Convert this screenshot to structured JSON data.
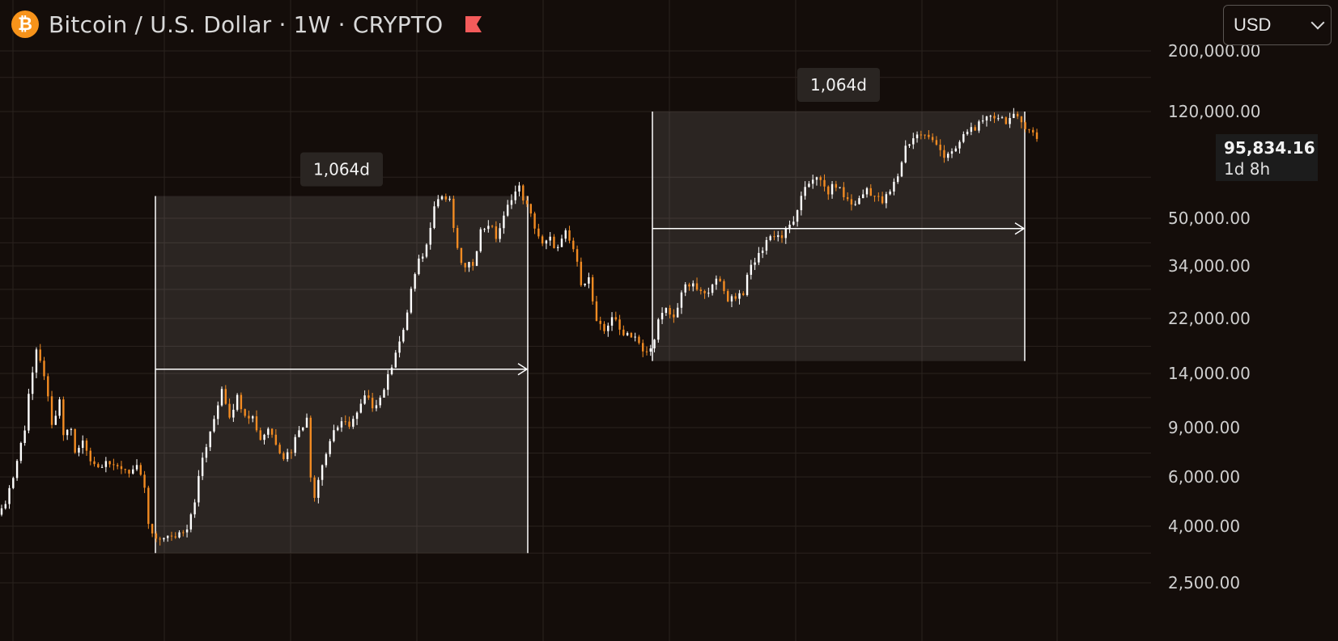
{
  "header": {
    "title": "Bitcoin / U.S. Dollar · 1W · CRYPTO",
    "icon": "bitcoin-icon",
    "flag_icon": "flag-icon",
    "currency": "USD"
  },
  "price_label": {
    "value": "95,834.16",
    "countdown": "1d 8h"
  },
  "colors": {
    "background": "#140d0a",
    "up": "#ffffff",
    "down": "#f28b22",
    "range_fill": "rgba(255,255,255,0.10)",
    "grid": "#2a221e",
    "axis_text": "#cfcfcf"
  },
  "chart_data": {
    "type": "candlestick",
    "title": "Bitcoin / U.S. Dollar · 1W · CRYPTO",
    "y_scale": "log",
    "y_ticks": [
      2500,
      4000,
      6000,
      9000,
      14000,
      22000,
      34000,
      50000,
      120000,
      200000
    ],
    "y_tick_labels": [
      "2,500.00",
      "4,000.00",
      "6,000.00",
      "9,000.00",
      "14,000.00",
      "22,000.00",
      "34,000.00",
      "50,000.00",
      "120,000.00",
      "200,000.00"
    ],
    "last_price": 95834.16,
    "grid": true,
    "series": [
      {
        "points": [
          [
            0,
            4500
          ],
          [
            3,
            6000
          ],
          [
            6,
            9000
          ],
          [
            7,
            12000
          ],
          [
            9,
            16500
          ],
          [
            11,
            14000
          ],
          [
            13,
            9000
          ],
          [
            15,
            11000
          ],
          [
            16,
            8500
          ],
          [
            18,
            9000
          ],
          [
            19,
            7200
          ],
          [
            21,
            8000
          ],
          [
            23,
            7000
          ],
          [
            25,
            6500
          ],
          [
            27,
            7000
          ],
          [
            29,
            6400
          ],
          [
            31,
            6500
          ],
          [
            33,
            6300
          ],
          [
            35,
            6400
          ],
          [
            37,
            5500
          ],
          [
            38,
            4000
          ],
          [
            40,
            3500
          ],
          [
            42,
            3700
          ],
          [
            44,
            3600
          ],
          [
            46,
            3800
          ],
          [
            48,
            4000
          ],
          [
            50,
            5000
          ],
          [
            52,
            7000
          ],
          [
            54,
            8500
          ],
          [
            56,
            11000
          ],
          [
            57,
            12500
          ],
          [
            59,
            10000
          ],
          [
            61,
            11500
          ],
          [
            63,
            10200
          ],
          [
            65,
            9800
          ],
          [
            67,
            8200
          ],
          [
            69,
            9000
          ],
          [
            71,
            8000
          ],
          [
            73,
            7100
          ],
          [
            75,
            7500
          ],
          [
            77,
            9000
          ],
          [
            79,
            9600
          ],
          [
            80,
            6000
          ],
          [
            81,
            5200
          ],
          [
            83,
            6800
          ],
          [
            84,
            7300
          ],
          [
            86,
            8900
          ],
          [
            88,
            9200
          ],
          [
            90,
            9300
          ],
          [
            92,
            10000
          ],
          [
            94,
            11500
          ],
          [
            96,
            10800
          ],
          [
            98,
            11500
          ],
          [
            100,
            13500
          ],
          [
            102,
            17000
          ],
          [
            104,
            19500
          ],
          [
            106,
            28000
          ],
          [
            108,
            35000
          ],
          [
            110,
            40000
          ],
          [
            112,
            57000
          ],
          [
            114,
            60000
          ],
          [
            116,
            57000
          ],
          [
            118,
            38000
          ],
          [
            120,
            33000
          ],
          [
            122,
            35000
          ],
          [
            124,
            45000
          ],
          [
            126,
            48000
          ],
          [
            128,
            43000
          ],
          [
            130,
            50000
          ],
          [
            132,
            60000
          ],
          [
            134,
            64000
          ],
          [
            136,
            55000
          ],
          [
            138,
            47000
          ],
          [
            140,
            40000
          ],
          [
            142,
            42000
          ],
          [
            144,
            39000
          ],
          [
            146,
            44000
          ],
          [
            148,
            39000
          ],
          [
            150,
            30000
          ],
          [
            152,
            30500
          ],
          [
            154,
            21000
          ],
          [
            156,
            19800
          ],
          [
            158,
            22500
          ],
          [
            160,
            20000
          ],
          [
            162,
            19500
          ],
          [
            164,
            19000
          ],
          [
            166,
            16500
          ],
          [
            168,
            17000
          ],
          [
            170,
            21500
          ],
          [
            172,
            23500
          ],
          [
            174,
            22000
          ],
          [
            176,
            27500
          ],
          [
            178,
            29000
          ],
          [
            180,
            28000
          ],
          [
            182,
            26500
          ],
          [
            184,
            30000
          ],
          [
            186,
            29500
          ],
          [
            188,
            26000
          ],
          [
            190,
            26500
          ],
          [
            192,
            27500
          ],
          [
            194,
            34000
          ],
          [
            196,
            37000
          ],
          [
            198,
            42000
          ],
          [
            200,
            44000
          ],
          [
            202,
            43000
          ],
          [
            204,
            47000
          ],
          [
            206,
            52000
          ],
          [
            208,
            65000
          ],
          [
            210,
            70000
          ],
          [
            212,
            67000
          ],
          [
            214,
            62000
          ],
          [
            216,
            66000
          ],
          [
            218,
            60000
          ],
          [
            220,
            56000
          ],
          [
            222,
            58000
          ],
          [
            224,
            64000
          ],
          [
            226,
            60000
          ],
          [
            228,
            57000
          ],
          [
            230,
            62000
          ],
          [
            232,
            71000
          ],
          [
            234,
            90000
          ],
          [
            236,
            97000
          ],
          [
            238,
            100000
          ],
          [
            240,
            96000
          ],
          [
            242,
            94000
          ],
          [
            244,
            83000
          ],
          [
            246,
            84000
          ],
          [
            248,
            93000
          ],
          [
            250,
            103000
          ],
          [
            252,
            106000
          ],
          [
            254,
            108000
          ],
          [
            256,
            117000
          ],
          [
            258,
            115000
          ],
          [
            260,
            112000
          ],
          [
            262,
            114000
          ],
          [
            264,
            110000
          ],
          [
            266,
            105000
          ],
          [
            268,
            95834
          ]
        ]
      }
    ],
    "annotations": [
      {
        "type": "date_range",
        "label": "1,064d",
        "y_top": 60000,
        "y_bottom": 3200,
        "arrow_y": 14500
      },
      {
        "type": "date_range",
        "label": "1,064d",
        "y_top": 120000,
        "y_bottom": 15500,
        "arrow_y": 46000
      }
    ]
  }
}
